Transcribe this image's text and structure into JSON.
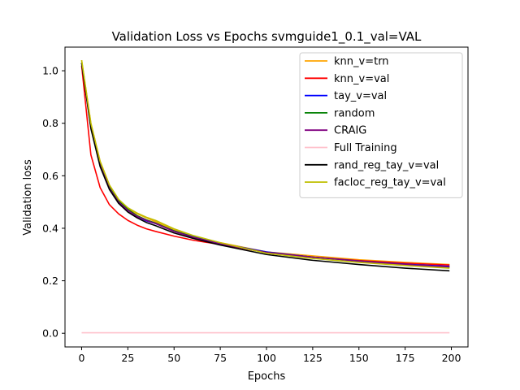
{
  "chart_data": {
    "type": "line",
    "title": "Validation Loss vs Epochs svmguide1_0.1_val=VAL",
    "xlabel": "Epochs",
    "ylabel": "Validation loss",
    "xlim": [
      -9,
      209
    ],
    "ylim": [
      -0.052,
      1.09
    ],
    "xticks": [
      0,
      25,
      50,
      75,
      100,
      125,
      150,
      175,
      200
    ],
    "yticks": [
      0.0,
      0.2,
      0.4,
      0.6,
      0.8,
      1.0
    ],
    "xtick_labels": [
      "0",
      "25",
      "50",
      "75",
      "100",
      "125",
      "150",
      "175",
      "200"
    ],
    "ytick_labels": [
      "0.0",
      "0.2",
      "0.4",
      "0.6",
      "0.8",
      "1.0"
    ],
    "grid": false,
    "legend_position": "top-right",
    "series": [
      {
        "name": "knn_v=trn",
        "color": "#ffa500",
        "x": [
          0,
          5,
          10,
          15,
          20,
          25,
          30,
          35,
          40,
          50,
          60,
          75,
          100,
          125,
          150,
          175,
          199
        ],
        "y": [
          1.04,
          0.8,
          0.655,
          0.565,
          0.51,
          0.475,
          0.455,
          0.44,
          0.425,
          0.395,
          0.37,
          0.345,
          0.31,
          0.295,
          0.28,
          0.27,
          0.262
        ]
      },
      {
        "name": "knn_v=val",
        "color": "#ff0000",
        "x": [
          0,
          5,
          10,
          15,
          20,
          25,
          30,
          35,
          40,
          50,
          60,
          75,
          100,
          125,
          150,
          175,
          199
        ],
        "y": [
          1.02,
          0.68,
          0.555,
          0.49,
          0.455,
          0.43,
          0.412,
          0.398,
          0.388,
          0.37,
          0.355,
          0.338,
          0.308,
          0.29,
          0.277,
          0.267,
          0.26
        ]
      },
      {
        "name": "tay_v=val",
        "color": "#0000ff",
        "x": [
          0,
          5,
          10,
          15,
          20,
          25,
          30,
          35,
          40,
          50,
          60,
          75,
          100,
          125,
          150,
          175,
          199
        ],
        "y": [
          1.03,
          0.79,
          0.645,
          0.555,
          0.505,
          0.47,
          0.445,
          0.428,
          0.418,
          0.39,
          0.368,
          0.342,
          0.31,
          0.29,
          0.275,
          0.263,
          0.255
        ]
      },
      {
        "name": "random",
        "color": "#008000",
        "x": [
          0,
          5,
          10,
          15,
          20,
          25,
          30,
          35,
          40,
          50,
          60,
          75,
          100,
          125,
          150,
          175,
          199
        ],
        "y": [
          1.03,
          0.79,
          0.645,
          0.555,
          0.505,
          0.472,
          0.448,
          0.432,
          0.42,
          0.39,
          0.367,
          0.34,
          0.308,
          0.29,
          0.275,
          0.262,
          0.252
        ]
      },
      {
        "name": "CRAIG",
        "color": "#800080",
        "x": [
          0,
          5,
          10,
          15,
          20,
          25,
          30,
          35,
          40,
          50,
          60,
          75,
          100,
          125,
          150,
          175,
          199
        ],
        "y": [
          1.03,
          0.785,
          0.64,
          0.552,
          0.5,
          0.468,
          0.445,
          0.43,
          0.418,
          0.388,
          0.366,
          0.34,
          0.308,
          0.29,
          0.275,
          0.262,
          0.253
        ]
      },
      {
        "name": "Full Training",
        "color": "#ffc0cb",
        "x": [
          0,
          50,
          100,
          150,
          199
        ],
        "y": [
          0.002,
          0.002,
          0.002,
          0.002,
          0.002
        ]
      },
      {
        "name": "rand_reg_tay_v=val",
        "color": "#000000",
        "x": [
          0,
          5,
          10,
          15,
          20,
          25,
          30,
          35,
          40,
          50,
          60,
          75,
          100,
          125,
          150,
          175,
          199
        ],
        "y": [
          1.03,
          0.78,
          0.635,
          0.548,
          0.495,
          0.462,
          0.44,
          0.422,
          0.41,
          0.382,
          0.362,
          0.336,
          0.3,
          0.278,
          0.262,
          0.248,
          0.238
        ]
      },
      {
        "name": "facloc_reg_tay_v=val",
        "color": "#bfbf00",
        "x": [
          0,
          5,
          10,
          15,
          20,
          25,
          30,
          35,
          40,
          50,
          60,
          75,
          100,
          125,
          150,
          175,
          199
        ],
        "y": [
          1.04,
          0.8,
          0.655,
          0.565,
          0.51,
          0.478,
          0.458,
          0.442,
          0.43,
          0.398,
          0.373,
          0.345,
          0.305,
          0.285,
          0.27,
          0.258,
          0.248
        ]
      }
    ]
  }
}
